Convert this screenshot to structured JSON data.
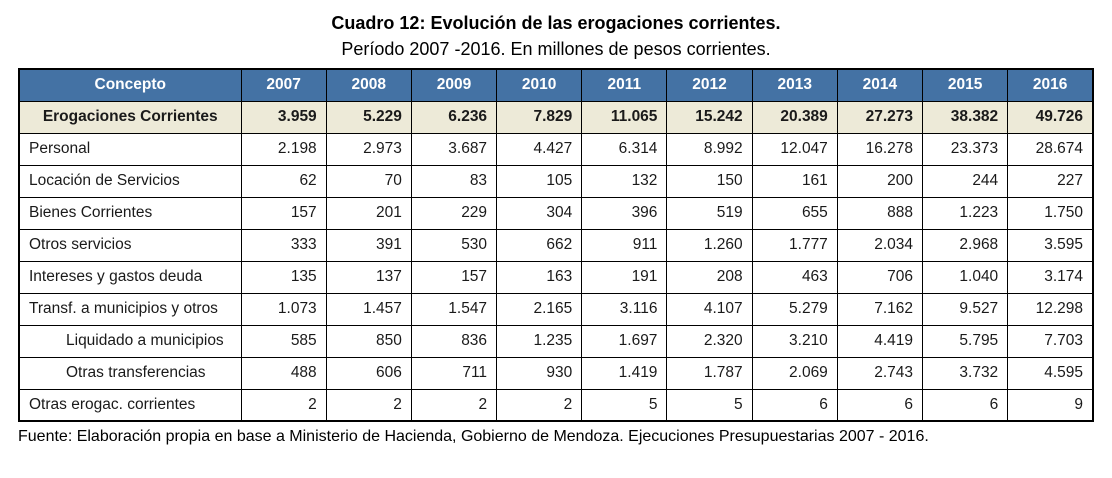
{
  "title": "Cuadro 12: Evolución de las erogaciones corrientes.",
  "subtitle": "Período 2007 -2016. En millones de pesos corrientes.",
  "source": "Fuente: Elaboración propia en base a Ministerio de Hacienda, Gobierno de Mendoza. Ejecuciones Presupuestarias 2007 - 2016.",
  "colors": {
    "header_bg": "#4472a4",
    "header_text": "#ffffff",
    "total_row_bg": "#edead8",
    "border": "#000000"
  },
  "table": {
    "columns": [
      "Concepto",
      "2007",
      "2008",
      "2009",
      "2010",
      "2011",
      "2012",
      "2013",
      "2014",
      "2015",
      "2016"
    ],
    "rows": [
      {
        "label": "Erogaciones Corrientes",
        "style": "total",
        "values": [
          "3.959",
          "5.229",
          "6.236",
          "7.829",
          "11.065",
          "15.242",
          "20.389",
          "27.273",
          "38.382",
          "49.726"
        ]
      },
      {
        "label": "Personal",
        "style": "normal",
        "values": [
          "2.198",
          "2.973",
          "3.687",
          "4.427",
          "6.314",
          "8.992",
          "12.047",
          "16.278",
          "23.373",
          "28.674"
        ]
      },
      {
        "label": "Locación de Servicios",
        "style": "normal",
        "values": [
          "62",
          "70",
          "83",
          "105",
          "132",
          "150",
          "161",
          "200",
          "244",
          "227"
        ]
      },
      {
        "label": "Bienes Corrientes",
        "style": "normal",
        "values": [
          "157",
          "201",
          "229",
          "304",
          "396",
          "519",
          "655",
          "888",
          "1.223",
          "1.750"
        ]
      },
      {
        "label": "Otros servicios",
        "style": "normal",
        "values": [
          "333",
          "391",
          "530",
          "662",
          "911",
          "1.260",
          "1.777",
          "2.034",
          "2.968",
          "3.595"
        ]
      },
      {
        "label": "Intereses y gastos deuda",
        "style": "normal",
        "values": [
          "135",
          "137",
          "157",
          "163",
          "191",
          "208",
          "463",
          "706",
          "1.040",
          "3.174"
        ]
      },
      {
        "label": "Transf. a municipios y otros",
        "style": "normal",
        "values": [
          "1.073",
          "1.457",
          "1.547",
          "2.165",
          "3.116",
          "4.107",
          "5.279",
          "7.162",
          "9.527",
          "12.298"
        ]
      },
      {
        "label": "Liquidado a municipios",
        "style": "indent",
        "values": [
          "585",
          "850",
          "836",
          "1.235",
          "1.697",
          "2.320",
          "3.210",
          "4.419",
          "5.795",
          "7.703"
        ]
      },
      {
        "label": "Otras transferencias",
        "style": "indent",
        "values": [
          "488",
          "606",
          "711",
          "930",
          "1.419",
          "1.787",
          "2.069",
          "2.743",
          "3.732",
          "4.595"
        ]
      },
      {
        "label": "Otras erogac. corrientes",
        "style": "normal",
        "values": [
          "2",
          "2",
          "2",
          "2",
          "5",
          "5",
          "6",
          "6",
          "6",
          "9"
        ]
      }
    ]
  }
}
